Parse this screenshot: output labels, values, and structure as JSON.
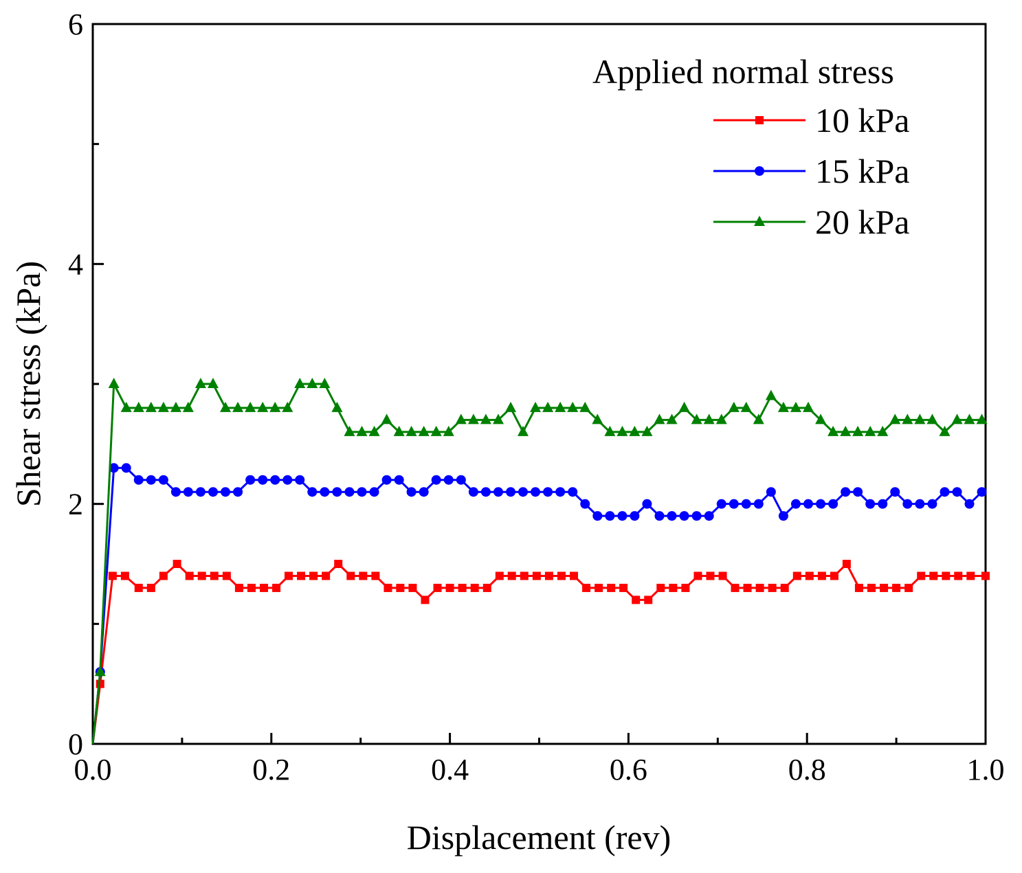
{
  "chart_data": {
    "type": "line",
    "xlabel": "Displacement (rev)",
    "ylabel": "Shear stress (kPa)",
    "xlim": [
      0,
      1.0
    ],
    "ylim": [
      0,
      6
    ],
    "x_ticks": [
      "0.0",
      "0.2",
      "0.4",
      "0.6",
      "0.8",
      "1.0"
    ],
    "y_ticks": [
      "0",
      "2",
      "4",
      "6"
    ],
    "grid": false,
    "legend": {
      "title": "Applied normal stress",
      "position": "top-right"
    },
    "series": [
      {
        "name": "10 kPa",
        "color": "#ff0000",
        "marker": "square",
        "x": [
          0,
          0.0083,
          0.0222,
          0.0361,
          0.0514,
          0.0653,
          0.0792,
          0.0944,
          0.1083,
          0.1222,
          0.1361,
          0.15,
          0.1639,
          0.1778,
          0.1917,
          0.2056,
          0.2194,
          0.2333,
          0.2472,
          0.2611,
          0.275,
          0.2889,
          0.3028,
          0.3167,
          0.3306,
          0.3444,
          0.3583,
          0.3722,
          0.3861,
          0.4,
          0.4139,
          0.4278,
          0.4417,
          0.4556,
          0.4694,
          0.4833,
          0.4972,
          0.5111,
          0.525,
          0.5389,
          0.5528,
          0.5667,
          0.5806,
          0.5944,
          0.6083,
          0.6222,
          0.6361,
          0.65,
          0.6639,
          0.6778,
          0.6917,
          0.7056,
          0.7194,
          0.7333,
          0.7472,
          0.7611,
          0.775,
          0.7889,
          0.8028,
          0.8167,
          0.8306,
          0.8444,
          0.8583,
          0.8722,
          0.8861,
          0.9,
          0.9139,
          0.9278,
          0.9417,
          0.9556,
          0.9694,
          0.9833,
          1.0
        ],
        "y": [
          0,
          0.5,
          1.4,
          1.4,
          1.3,
          1.3,
          1.4,
          1.5,
          1.4,
          1.4,
          1.4,
          1.4,
          1.3,
          1.3,
          1.3,
          1.3,
          1.4,
          1.4,
          1.4,
          1.4,
          1.5,
          1.4,
          1.4,
          1.4,
          1.3,
          1.3,
          1.3,
          1.2,
          1.3,
          1.3,
          1.3,
          1.3,
          1.3,
          1.4,
          1.4,
          1.4,
          1.4,
          1.4,
          1.4,
          1.4,
          1.3,
          1.3,
          1.3,
          1.3,
          1.2,
          1.2,
          1.3,
          1.3,
          1.3,
          1.4,
          1.4,
          1.4,
          1.3,
          1.3,
          1.3,
          1.3,
          1.3,
          1.4,
          1.4,
          1.4,
          1.4,
          1.5,
          1.3,
          1.3,
          1.3,
          1.3,
          1.3,
          1.4,
          1.4,
          1.4,
          1.4,
          1.4,
          1.4
        ]
      },
      {
        "name": "15 kPa",
        "color": "#0000ff",
        "marker": "circle",
        "x": [
          0,
          0.0083,
          0.0236,
          0.0375,
          0.0514,
          0.0653,
          0.0792,
          0.0931,
          0.1069,
          0.1208,
          0.1347,
          0.1486,
          0.1625,
          0.1764,
          0.1903,
          0.2042,
          0.2181,
          0.2319,
          0.2458,
          0.2597,
          0.2736,
          0.2875,
          0.3014,
          0.3153,
          0.3292,
          0.3431,
          0.3569,
          0.3708,
          0.3847,
          0.3986,
          0.4125,
          0.4264,
          0.4403,
          0.4542,
          0.4681,
          0.4819,
          0.4958,
          0.5097,
          0.5236,
          0.5375,
          0.5514,
          0.5653,
          0.5792,
          0.5931,
          0.6069,
          0.6208,
          0.6347,
          0.6486,
          0.6625,
          0.6764,
          0.6903,
          0.7042,
          0.7181,
          0.7319,
          0.7458,
          0.7597,
          0.7736,
          0.7875,
          0.8014,
          0.8153,
          0.8292,
          0.8431,
          0.8569,
          0.8708,
          0.8847,
          0.8986,
          0.9125,
          0.9264,
          0.9403,
          0.9542,
          0.9681,
          0.9819,
          0.9958
        ],
        "y": [
          0,
          0.6,
          2.3,
          2.3,
          2.2,
          2.2,
          2.2,
          2.1,
          2.1,
          2.1,
          2.1,
          2.1,
          2.1,
          2.2,
          2.2,
          2.2,
          2.2,
          2.2,
          2.1,
          2.1,
          2.1,
          2.1,
          2.1,
          2.1,
          2.2,
          2.2,
          2.1,
          2.1,
          2.2,
          2.2,
          2.2,
          2.1,
          2.1,
          2.1,
          2.1,
          2.1,
          2.1,
          2.1,
          2.1,
          2.1,
          2.0,
          1.9,
          1.9,
          1.9,
          1.9,
          2.0,
          1.9,
          1.9,
          1.9,
          1.9,
          1.9,
          2.0,
          2.0,
          2.0,
          2.0,
          2.1,
          1.9,
          2.0,
          2.0,
          2.0,
          2.0,
          2.1,
          2.1,
          2.0,
          2.0,
          2.1,
          2.0,
          2.0,
          2.0,
          2.1,
          2.1,
          2.0,
          2.1
        ]
      },
      {
        "name": "20 kPa",
        "color": "#008000",
        "marker": "triangle",
        "x": [
          0,
          0.0083,
          0.0236,
          0.0375,
          0.0514,
          0.0653,
          0.0792,
          0.0931,
          0.1069,
          0.1208,
          0.1347,
          0.1486,
          0.1625,
          0.1764,
          0.1903,
          0.2042,
          0.2181,
          0.2319,
          0.2458,
          0.2597,
          0.2736,
          0.2875,
          0.3014,
          0.3153,
          0.3292,
          0.3431,
          0.3569,
          0.3708,
          0.3847,
          0.3986,
          0.4125,
          0.4264,
          0.4403,
          0.4542,
          0.4681,
          0.4819,
          0.4958,
          0.5097,
          0.5236,
          0.5375,
          0.5514,
          0.5653,
          0.5792,
          0.5931,
          0.6069,
          0.6208,
          0.6347,
          0.6486,
          0.6625,
          0.6764,
          0.6903,
          0.7042,
          0.7181,
          0.7319,
          0.7458,
          0.7597,
          0.7736,
          0.7875,
          0.8014,
          0.8153,
          0.8292,
          0.8431,
          0.8569,
          0.8708,
          0.8847,
          0.8986,
          0.9125,
          0.9264,
          0.9403,
          0.9542,
          0.9681,
          0.9819,
          0.9958
        ],
        "y": [
          0,
          0.6,
          3.0,
          2.8,
          2.8,
          2.8,
          2.8,
          2.8,
          2.8,
          3.0,
          3.0,
          2.8,
          2.8,
          2.8,
          2.8,
          2.8,
          2.8,
          3.0,
          3.0,
          3.0,
          2.8,
          2.6,
          2.6,
          2.6,
          2.7,
          2.6,
          2.6,
          2.6,
          2.6,
          2.6,
          2.7,
          2.7,
          2.7,
          2.7,
          2.8,
          2.6,
          2.8,
          2.8,
          2.8,
          2.8,
          2.8,
          2.7,
          2.6,
          2.6,
          2.6,
          2.6,
          2.7,
          2.7,
          2.8,
          2.7,
          2.7,
          2.7,
          2.8,
          2.8,
          2.7,
          2.9,
          2.8,
          2.8,
          2.8,
          2.7,
          2.6,
          2.6,
          2.6,
          2.6,
          2.6,
          2.7,
          2.7,
          2.7,
          2.7,
          2.6,
          2.7,
          2.7,
          2.7
        ]
      }
    ]
  }
}
